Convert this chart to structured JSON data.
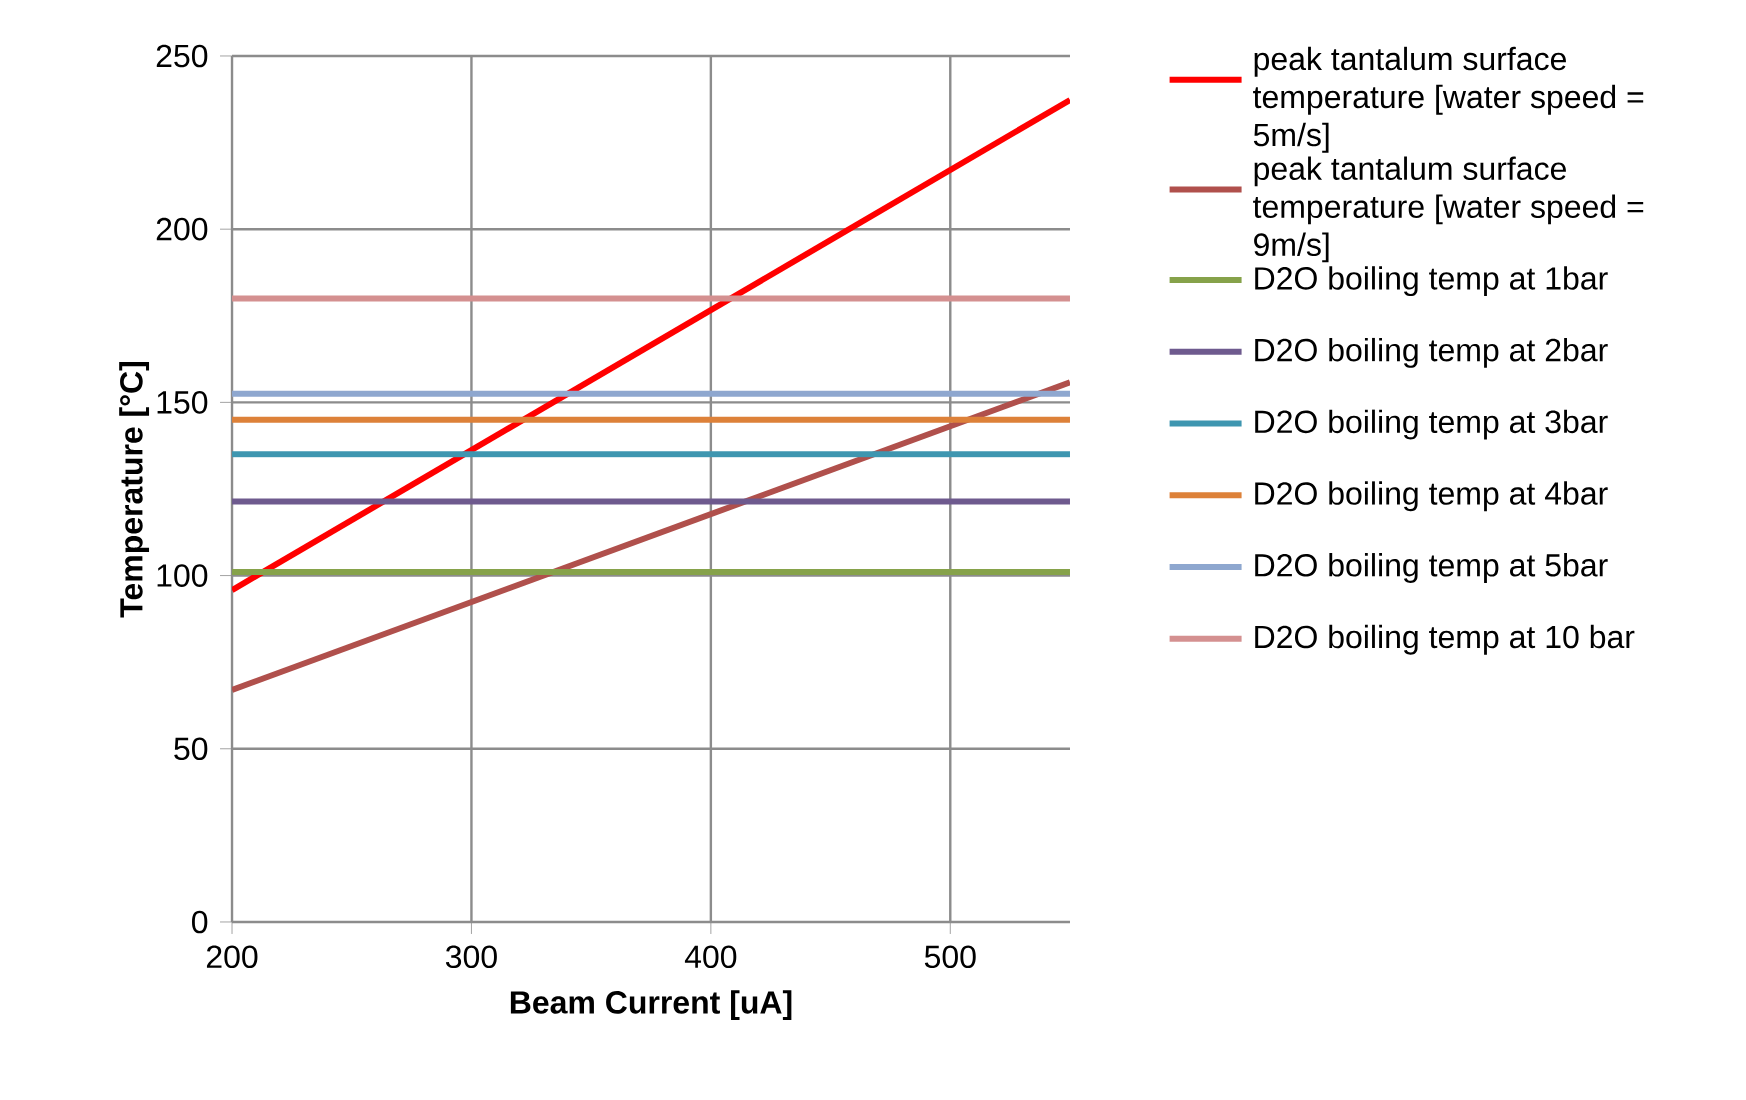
{
  "chart_data": {
    "type": "line",
    "xlabel": "Beam Current [uA]",
    "ylabel": "Temperature [°C]",
    "x": [
      200,
      550
    ],
    "xlim": [
      200,
      550
    ],
    "xticks": [
      200,
      300,
      400,
      500
    ],
    "ylim": [
      0,
      250
    ],
    "yticks": [
      0,
      50,
      100,
      150,
      200,
      250
    ],
    "grid": true,
    "legend": "right",
    "marker": "none",
    "line_style": "solid",
    "series": [
      {
        "name": "peak tantalum surface temperature [water speed = 5m/s]",
        "color": "#ff0000",
        "values": [
          95.8,
          237.3
        ]
      },
      {
        "name": "peak tantalum surface temperature [water speed = 9m/s]",
        "color": "#b0504c",
        "values": [
          67,
          155.8
        ]
      },
      {
        "name": "D2O boiling temp at 1bar",
        "color": "#86a24a",
        "values": [
          101,
          101
        ]
      },
      {
        "name": "D2O boiling temp at 2bar",
        "color": "#6e5a8e",
        "values": [
          121.4,
          121.4
        ]
      },
      {
        "name": "D2O boiling temp at 3bar",
        "color": "#3e96b0",
        "values": [
          135,
          135
        ]
      },
      {
        "name": "D2O boiling temp at 4bar",
        "color": "#dd8139",
        "values": [
          145,
          145
        ]
      },
      {
        "name": "D2O boiling temp at 5bar",
        "color": "#8ea7cf",
        "values": [
          152.5,
          152.5
        ]
      },
      {
        "name": "D2O boiling temp at 10 bar",
        "color": "#d49090",
        "values": [
          180,
          180
        ]
      }
    ]
  }
}
